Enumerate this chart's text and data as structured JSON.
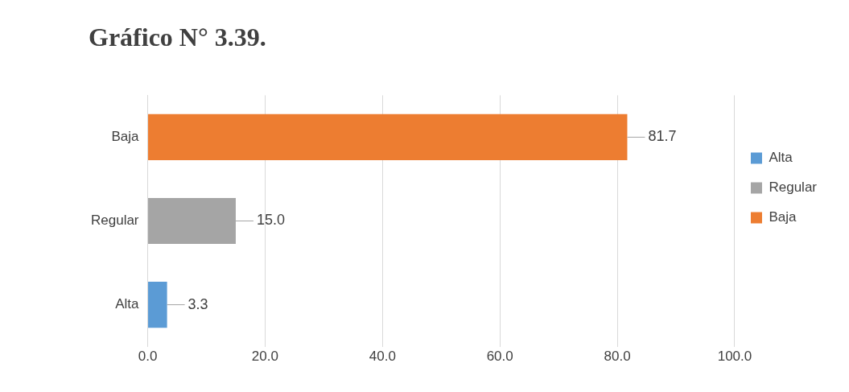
{
  "chart_data": {
    "type": "bar",
    "title": "Gráfico N° 3.39.",
    "orientation": "horizontal",
    "stacked": true,
    "categories": [
      "Baja",
      "Regular",
      "Alta"
    ],
    "series": [
      {
        "name": "Alta",
        "color": "#5b9bd5",
        "values": [
          null,
          null,
          3.3
        ],
        "value_labels": [
          null,
          null,
          "3.3"
        ]
      },
      {
        "name": "Regular",
        "color": "#a5a5a5",
        "values": [
          null,
          15.0,
          null
        ],
        "value_labels": [
          null,
          "15.0",
          null
        ]
      },
      {
        "name": "Baja",
        "color": "#ed7d31",
        "values": [
          81.7,
          null,
          null
        ],
        "value_labels": [
          "81.7",
          null,
          null
        ]
      }
    ],
    "xlim": [
      0,
      100
    ],
    "xticks": [
      {
        "value": 0,
        "label": "0.0"
      },
      {
        "value": 20,
        "label": "20.0"
      },
      {
        "value": 40,
        "label": "40.0"
      },
      {
        "value": 60,
        "label": "60.0"
      },
      {
        "value": 80,
        "label": "80.0"
      },
      {
        "value": 100,
        "label": "100.0"
      }
    ],
    "grid": "x",
    "legend": "right"
  }
}
